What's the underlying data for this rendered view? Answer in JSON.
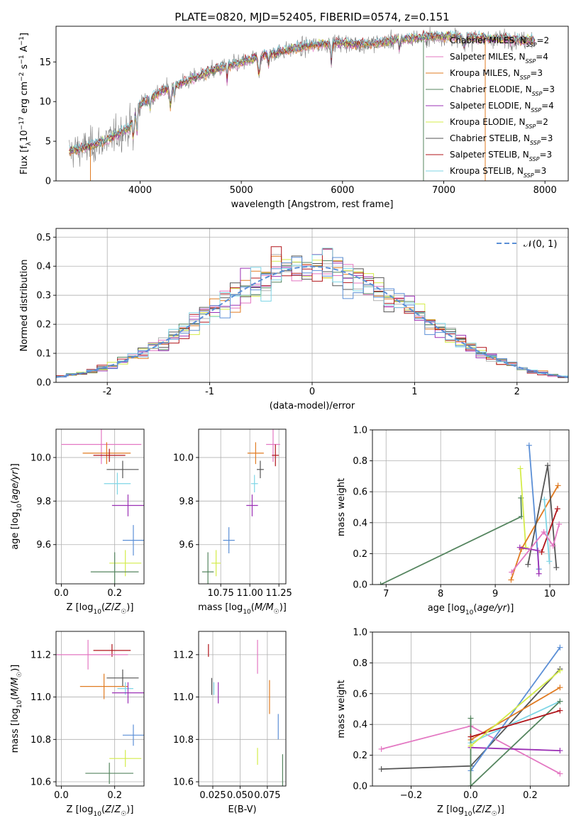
{
  "figure_title": "PLATE=0820, MJD=52405, FIBERID=0574, z=0.151",
  "colors": {
    "Chabrier MILES": "#b0b0b0",
    "Salpeter MILES": "#e377c2",
    "Kroupa MILES": "#e07b22",
    "Chabrier ELODIE": "#55855f",
    "Salpeter ELODIE": "#9b30b5",
    "Kroupa ELODIE": "#d4ec4a",
    "Chabrier STELIB": "#555555",
    "Salpeter STELIB": "#b0141a",
    "Kroupa STELIB": "#7fd6e6",
    "normal": "#5b8fd6",
    "extra_blue": "#5b8fd6"
  },
  "chart_data": [
    {
      "id": "spectrum",
      "type": "line",
      "title": "PLATE=0820, MJD=52405, FIBERID=0574, z=0.151",
      "xlabel": "wavelength [Angstrom, rest frame]",
      "ylabel": "Flux [f_λ 10^-17 erg cm^-2 s^-1 A^-1]",
      "xlim": [
        3170,
        8230
      ],
      "ylim": [
        0,
        19.5
      ],
      "xticks": [
        4000,
        5000,
        6000,
        7000,
        8000
      ],
      "yticks": [
        0,
        5,
        10,
        15
      ],
      "legend_position": "top-right",
      "series": [
        {
          "name": "Chabrier MILES",
          "nssp": "2"
        },
        {
          "name": "Salpeter MILES",
          "nssp": "4"
        },
        {
          "name": "Kroupa MILES",
          "nssp": "3"
        },
        {
          "name": "Chabrier ELODIE",
          "nssp": "3"
        },
        {
          "name": "Salpeter ELODIE",
          "nssp": "4"
        },
        {
          "name": "Kroupa ELODIE",
          "nssp": "2"
        },
        {
          "name": "Chabrier STELIB",
          "nssp": "3"
        },
        {
          "name": "Salpeter STELIB",
          "nssp": "3"
        },
        {
          "name": "Kroupa STELIB",
          "nssp": "3"
        }
      ],
      "continuum": [
        [
          3300,
          3.7
        ],
        [
          3500,
          4.3
        ],
        [
          3700,
          5.3
        ],
        [
          3900,
          6.8
        ],
        [
          4000,
          9.6
        ],
        [
          4200,
          11.2
        ],
        [
          4500,
          12.8
        ],
        [
          4800,
          14.3
        ],
        [
          5000,
          14.9
        ],
        [
          5200,
          15.8
        ],
        [
          5500,
          16.6
        ],
        [
          5800,
          17.3
        ],
        [
          6000,
          17.4
        ],
        [
          6200,
          17.2
        ],
        [
          6500,
          17.7
        ],
        [
          6800,
          18.1
        ],
        [
          7000,
          18.2
        ],
        [
          7300,
          18.0
        ],
        [
          7600,
          17.9
        ],
        [
          7800,
          17.7
        ],
        [
          7900,
          17.8
        ]
      ],
      "continuum_wavelength_range": [
        3300,
        7900
      ]
    },
    {
      "id": "residuals",
      "type": "bar",
      "xlabel": "(data-model)/error",
      "ylabel": "Normed distribution",
      "xlim": [
        -2.5,
        2.5
      ],
      "ylim": [
        0,
        0.53
      ],
      "xticks": [
        -2,
        -1,
        0,
        1,
        2
      ],
      "yticks": [
        0.0,
        0.1,
        0.2,
        0.3,
        0.4,
        0.5
      ],
      "grid": true,
      "legend": "𝒩(0, 1)",
      "legend_position": "top-right",
      "bin_width": 0.1,
      "bin_range": [
        -2.5,
        2.5
      ]
    },
    {
      "id": "age_vs_Z",
      "type": "scatter",
      "xlabel": "Z [log10(Z/Z☉)]",
      "ylabel": "age  [log10(age/yr)]",
      "xlim": [
        -0.02,
        0.31
      ],
      "ylim": [
        9.42,
        10.13
      ],
      "xticks": [
        0.0,
        0.2
      ],
      "yticks": [
        9.6,
        9.8,
        10.0
      ],
      "grid": true,
      "points": [
        {
          "model": "Salpeter MILES",
          "x": 0.15,
          "xerr": 0.15,
          "y": 10.06,
          "yerr": 0.09
        },
        {
          "model": "Kroupa MILES",
          "x": 0.17,
          "xerr": 0.09,
          "y": 10.02,
          "yerr": 0.05
        },
        {
          "model": "Salpeter STELIB",
          "x": 0.18,
          "xerr": 0.06,
          "y": 10.01,
          "yerr": 0.03
        },
        {
          "model": "Chabrier STELIB",
          "x": 0.23,
          "xerr": 0.06,
          "y": 9.945,
          "yerr": 0.04
        },
        {
          "model": "Kroupa STELIB",
          "x": 0.21,
          "xerr": 0.05,
          "y": 9.88,
          "yerr": 0.05
        },
        {
          "model": "Salpeter ELODIE",
          "x": 0.25,
          "xerr": 0.06,
          "y": 9.78,
          "yerr": 0.05
        },
        {
          "model": "extra_blue",
          "x": 0.27,
          "xerr": 0.04,
          "y": 9.62,
          "yerr": 0.07
        },
        {
          "model": "Kroupa ELODIE",
          "x": 0.24,
          "xerr": 0.06,
          "y": 9.515,
          "yerr": 0.06
        },
        {
          "model": "Chabrier ELODIE",
          "x": 0.2,
          "xerr": 0.09,
          "y": 9.475,
          "yerr": 0.09
        }
      ]
    },
    {
      "id": "age_vs_mass",
      "type": "scatter",
      "xlabel": "mass [log10(M/M☉)]",
      "ylabel": "",
      "xlim": [
        10.56,
        11.31
      ],
      "ylim": [
        9.42,
        10.13
      ],
      "xticks": [
        10.75,
        11.0,
        11.25
      ],
      "yticks": [
        9.6,
        9.8,
        10.0
      ],
      "grid": true,
      "points": [
        {
          "model": "Salpeter MILES",
          "x": 11.2,
          "xerr": 0.06,
          "y": 10.06,
          "yerr": 0.08
        },
        {
          "model": "Kroupa MILES",
          "x": 11.05,
          "xerr": 0.07,
          "y": 10.02,
          "yerr": 0.05
        },
        {
          "model": "Salpeter STELIB",
          "x": 11.22,
          "xerr": 0.03,
          "y": 10.01,
          "yerr": 0.05
        },
        {
          "model": "Chabrier STELIB",
          "x": 11.09,
          "xerr": 0.03,
          "y": 9.945,
          "yerr": 0.04
        },
        {
          "model": "Kroupa STELIB",
          "x": 11.04,
          "xerr": 0.03,
          "y": 9.88,
          "yerr": 0.04
        },
        {
          "model": "Salpeter ELODIE",
          "x": 11.02,
          "xerr": 0.05,
          "y": 9.78,
          "yerr": 0.05
        },
        {
          "model": "extra_blue",
          "x": 10.82,
          "xerr": 0.05,
          "y": 9.62,
          "yerr": 0.06
        },
        {
          "model": "Kroupa ELODIE",
          "x": 10.71,
          "xerr": 0.04,
          "y": 9.515,
          "yerr": 0.06
        },
        {
          "model": "Chabrier ELODIE",
          "x": 10.64,
          "xerr": 0.05,
          "y": 9.475,
          "yerr": 0.09
        }
      ]
    },
    {
      "id": "mass_weight_vs_age",
      "type": "line",
      "xlabel": "age  [log10(age/yr)]",
      "ylabel": "mass weight",
      "xlim": [
        6.75,
        10.35
      ],
      "ylim": [
        0.0,
        1.0
      ],
      "xticks": [
        7,
        8,
        9,
        10
      ],
      "yticks": [
        0.0,
        0.2,
        0.4,
        0.6,
        0.8,
        1.0
      ],
      "grid": true,
      "series": [
        {
          "model": "Chabrier ELODIE",
          "points": [
            [
              6.9,
              0.0
            ],
            [
              9.48,
              0.44
            ],
            [
              9.47,
              0.56
            ]
          ]
        },
        {
          "model": "Kroupa ELODIE",
          "points": [
            [
              9.46,
              0.75
            ],
            [
              9.56,
              0.24
            ]
          ]
        },
        {
          "model": "Kroupa MILES",
          "points": [
            [
              9.29,
              0.03
            ],
            [
              9.48,
              0.23
            ],
            [
              10.15,
              0.64
            ]
          ]
        },
        {
          "model": "extra_blue",
          "points": [
            [
              9.62,
              0.9
            ],
            [
              9.8,
              0.1
            ]
          ]
        },
        {
          "model": "Chabrier STELIB",
          "points": [
            [
              9.6,
              0.13
            ],
            [
              9.96,
              0.77
            ],
            [
              10.12,
              0.11
            ]
          ]
        },
        {
          "model": "Salpeter STELIB",
          "points": [
            [
              9.85,
              0.21
            ],
            [
              10.14,
              0.49
            ]
          ]
        },
        {
          "model": "Kroupa STELIB",
          "points": [
            [
              9.9,
              0.55
            ],
            [
              9.99,
              0.15
            ]
          ]
        },
        {
          "model": "Salpeter ELODIE",
          "points": [
            [
              9.45,
              0.24
            ],
            [
              9.78,
              0.22
            ],
            [
              9.8,
              0.07
            ]
          ]
        },
        {
          "model": "Salpeter MILES",
          "points": [
            [
              9.3,
              0.08
            ],
            [
              9.89,
              0.34
            ],
            [
              10.06,
              0.25
            ],
            [
              10.17,
              0.39
            ]
          ]
        }
      ]
    },
    {
      "id": "mass_vs_Z",
      "type": "scatter",
      "xlabel": "Z [log10(Z/Z☉)]",
      "ylabel": "mass [log10(M/M☉)]",
      "xlim": [
        -0.02,
        0.31
      ],
      "ylim": [
        10.58,
        11.31
      ],
      "xticks": [
        0.0,
        0.2
      ],
      "yticks": [
        10.6,
        10.8,
        11.0,
        11.2
      ],
      "grid": true,
      "points": [
        {
          "model": "Salpeter STELIB",
          "x": 0.19,
          "xerr": 0.07,
          "y": 11.22,
          "yerr": 0.03
        },
        {
          "model": "Salpeter MILES",
          "x": 0.1,
          "xerr": 0.15,
          "y": 11.2,
          "yerr": 0.07
        },
        {
          "model": "Chabrier STELIB",
          "x": 0.23,
          "xerr": 0.06,
          "y": 11.09,
          "yerr": 0.04
        },
        {
          "model": "Kroupa MILES",
          "x": 0.16,
          "xerr": 0.09,
          "y": 11.05,
          "yerr": 0.06
        },
        {
          "model": "Kroupa STELIB",
          "x": 0.24,
          "xerr": 0.03,
          "y": 11.04,
          "yerr": 0.03
        },
        {
          "model": "Salpeter ELODIE",
          "x": 0.25,
          "xerr": 0.06,
          "y": 11.02,
          "yerr": 0.05
        },
        {
          "model": "extra_blue",
          "x": 0.27,
          "xerr": 0.04,
          "y": 10.82,
          "yerr": 0.05
        },
        {
          "model": "Kroupa ELODIE",
          "x": 0.24,
          "xerr": 0.06,
          "y": 10.71,
          "yerr": 0.04
        },
        {
          "model": "Chabrier ELODIE",
          "x": 0.18,
          "xerr": 0.09,
          "y": 10.64,
          "yerr": 0.05
        }
      ]
    },
    {
      "id": "mass_vs_ebv",
      "type": "scatter",
      "xlabel": "E(B-V)",
      "ylabel": "",
      "xlim": [
        0.012,
        0.092
      ],
      "ylim": [
        10.58,
        11.31
      ],
      "xticks": [
        0.025,
        0.05,
        0.075
      ],
      "xticklabels": [
        "0.025",
        "0.050",
        "0.075"
      ],
      "yticks": [
        10.6,
        10.8,
        11.0,
        11.2
      ],
      "grid": true,
      "points": [
        {
          "model": "Salpeter STELIB",
          "x": 0.021,
          "y": 11.22,
          "yerr": 0.03
        },
        {
          "model": "Chabrier STELIB",
          "x": 0.024,
          "y": 11.05,
          "yerr": 0.04
        },
        {
          "model": "Kroupa STELIB",
          "x": 0.026,
          "y": 11.04,
          "yerr": 0.03
        },
        {
          "model": "Salpeter ELODIE",
          "x": 0.03,
          "y": 11.02,
          "yerr": 0.05
        },
        {
          "model": "Salpeter MILES",
          "x": 0.066,
          "y": 11.19,
          "yerr": 0.08
        },
        {
          "model": "Kroupa MILES",
          "x": 0.077,
          "y": 11.0,
          "yerr": 0.08
        },
        {
          "model": "Kroupa ELODIE",
          "x": 0.066,
          "y": 10.72,
          "yerr": 0.04
        },
        {
          "model": "extra_blue",
          "x": 0.085,
          "y": 10.86,
          "yerr": 0.06
        },
        {
          "model": "Chabrier ELODIE",
          "x": 0.089,
          "y": 10.64,
          "yerr": 0.09
        }
      ]
    },
    {
      "id": "mass_weight_vs_Z",
      "type": "line",
      "xlabel": "Z [log10(Z/Z☉)]",
      "ylabel": "mass weight",
      "xlim": [
        -0.33,
        0.33
      ],
      "ylim": [
        0.0,
        1.0
      ],
      "xticks": [
        -0.2,
        0.0,
        0.2
      ],
      "yticks": [
        0.0,
        0.2,
        0.4,
        0.6,
        0.8,
        1.0
      ],
      "grid": true,
      "series": [
        {
          "model": "Chabrier STELIB",
          "points": [
            [
              -0.3,
              0.11
            ],
            [
              0.0,
              0.13
            ],
            [
              0.3,
              0.76
            ]
          ]
        },
        {
          "model": "Salpeter MILES",
          "points": [
            [
              -0.3,
              0.24
            ],
            [
              0.0,
              0.39
            ],
            [
              0.3,
              0.08
            ]
          ]
        },
        {
          "model": "Salpeter ELODIE",
          "points": [
            [
              0.0,
              0.25
            ],
            [
              0.3,
              0.23
            ]
          ]
        },
        {
          "model": "extra_blue",
          "points": [
            [
              0.0,
              0.1
            ],
            [
              0.3,
              0.9
            ]
          ]
        },
        {
          "model": "Kroupa MILES",
          "points": [
            [
              0.0,
              0.3
            ],
            [
              0.3,
              0.64
            ]
          ]
        },
        {
          "model": "Kroupa STELIB",
          "points": [
            [
              0.0,
              0.28
            ],
            [
              0.3,
              0.55
            ]
          ]
        },
        {
          "model": "Chabrier ELODIE",
          "points": [
            [
              0.0,
              0.44
            ],
            [
              0.0,
              0.0
            ],
            [
              0.3,
              0.55
            ]
          ]
        },
        {
          "model": "Salpeter STELIB",
          "points": [
            [
              0.0,
              0.32
            ],
            [
              0.3,
              0.49
            ]
          ]
        },
        {
          "model": "Kroupa ELODIE",
          "points": [
            [
              0.0,
              0.26
            ],
            [
              0.3,
              0.75
            ]
          ]
        }
      ]
    }
  ]
}
